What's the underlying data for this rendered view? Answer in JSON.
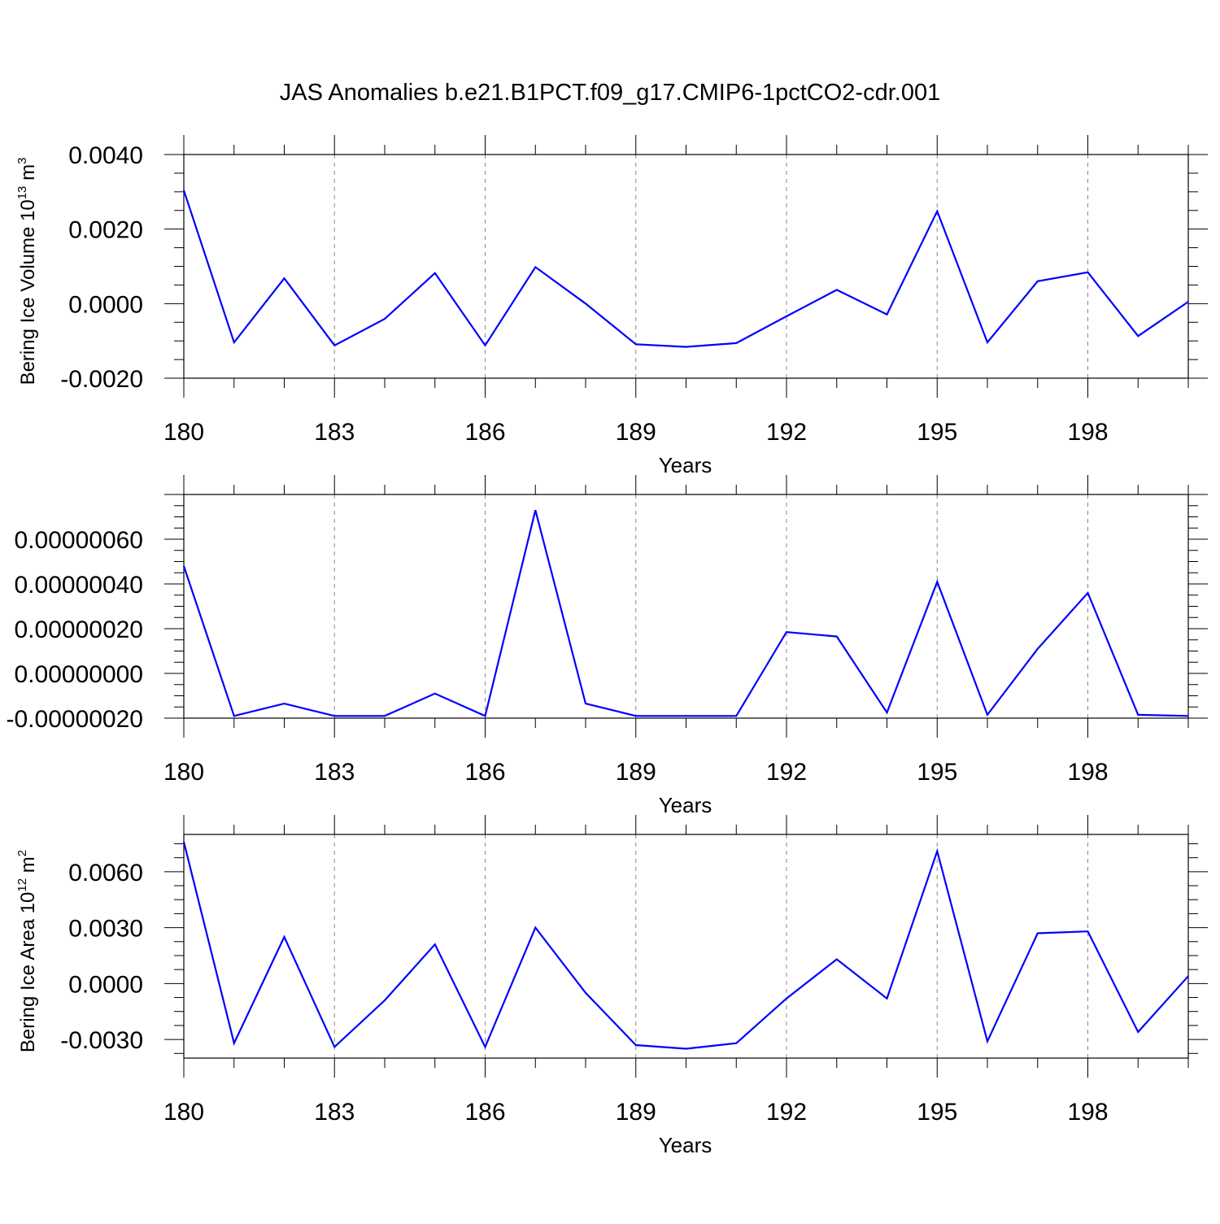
{
  "title": "JAS Anomalies b.e21.B1PCT.f09_g17.CMIP6-1pctCO2-cdr.001",
  "colors": {
    "line": "#0000ff",
    "axis": "#000000",
    "grid": "#888888"
  },
  "chart_data": [
    {
      "type": "line",
      "title": "",
      "xlabel": "Years",
      "ylabel_main": "Bering Ice Volume 10",
      "ylabel_exp": "13",
      "ylabel_tail": " m",
      "ylabel_tail_exp": "3",
      "xlim": [
        180,
        200
      ],
      "ylim": [
        -0.002,
        0.004
      ],
      "x_ticks": [
        180,
        183,
        186,
        189,
        192,
        195,
        198
      ],
      "x_tick_labels": [
        "180",
        "183",
        "186",
        "189",
        "192",
        "195",
        "198"
      ],
      "y_ticks": [
        -0.002,
        0.0,
        0.002,
        0.004
      ],
      "y_tick_labels": [
        "-0.0020",
        "0.0000",
        "0.0020",
        "0.0040"
      ],
      "grid": "vertical dashed at labeled x ticks",
      "series": [
        {
          "x": [
            180,
            181,
            182,
            183,
            184,
            185,
            186,
            187,
            188,
            189,
            190,
            191,
            192,
            193,
            194,
            195,
            196,
            197,
            198,
            199,
            200
          ],
          "values": [
            0.00304,
            -0.00104,
            0.00068,
            -0.00112,
            -0.00041,
            0.00082,
            -0.00112,
            0.00098,
            0.0,
            -0.00109,
            -0.00116,
            -0.00106,
            -0.00034,
            0.00037,
            -0.00029,
            0.00248,
            -0.00104,
            0.0006,
            0.00084,
            -0.00087,
            5e-05
          ]
        }
      ]
    },
    {
      "type": "line",
      "title": "",
      "xlabel": "Years",
      "xlim": [
        180,
        200
      ],
      "ylim": [
        -2e-07,
        8e-07
      ],
      "x_ticks": [
        180,
        183,
        186,
        189,
        192,
        195,
        198
      ],
      "x_tick_labels": [
        "180",
        "183",
        "186",
        "189",
        "192",
        "195",
        "198"
      ],
      "y_ticks": [
        -2e-07,
        0.0,
        2e-07,
        4e-07,
        6e-07
      ],
      "y_tick_labels": [
        "-0.00000020",
        "0.00000000",
        "0.00000020",
        "0.00000040",
        "0.00000060"
      ],
      "grid": "vertical dashed at labeled x ticks",
      "series": [
        {
          "x": [
            180,
            181,
            182,
            183,
            184,
            185,
            186,
            187,
            188,
            189,
            190,
            191,
            192,
            193,
            194,
            195,
            196,
            197,
            198,
            199,
            200
          ],
          "values": [
            4.8e-07,
            -1.9e-07,
            -1.35e-07,
            -1.9e-07,
            -1.9e-07,
            -9e-08,
            -1.9e-07,
            7.3e-07,
            -1.35e-07,
            -1.9e-07,
            -1.9e-07,
            -1.9e-07,
            1.85e-07,
            1.65e-07,
            -1.75e-07,
            4.1e-07,
            -1.85e-07,
            1.1e-07,
            3.6e-07,
            -1.85e-07,
            -1.9e-07
          ]
        }
      ]
    },
    {
      "type": "line",
      "title": "",
      "xlabel": "Years",
      "ylabel_main": "Bering Ice Area 10",
      "ylabel_exp": "12",
      "ylabel_tail": " m",
      "ylabel_tail_exp": "2",
      "xlim": [
        180,
        200
      ],
      "ylim": [
        -0.004,
        0.008
      ],
      "x_ticks": [
        180,
        183,
        186,
        189,
        192,
        195,
        198
      ],
      "x_tick_labels": [
        "180",
        "183",
        "186",
        "189",
        "192",
        "195",
        "198"
      ],
      "y_ticks": [
        -0.003,
        0.0,
        0.003,
        0.006
      ],
      "y_tick_labels": [
        "-0.0030",
        "0.0000",
        "0.0030",
        "0.0060"
      ],
      "grid": "vertical dashed at labeled x ticks",
      "series": [
        {
          "x": [
            180,
            181,
            182,
            183,
            184,
            185,
            186,
            187,
            188,
            189,
            190,
            191,
            192,
            193,
            194,
            195,
            196,
            197,
            198,
            199,
            200
          ],
          "values": [
            0.0076,
            -0.0032,
            0.0025,
            -0.0034,
            -0.0009,
            0.0021,
            -0.0034,
            0.003,
            -0.0005,
            -0.0033,
            -0.0035,
            -0.0032,
            -0.0008,
            0.0013,
            -0.0008,
            0.0071,
            -0.0031,
            0.0027,
            0.0028,
            -0.0026,
            0.0004
          ]
        }
      ]
    }
  ]
}
